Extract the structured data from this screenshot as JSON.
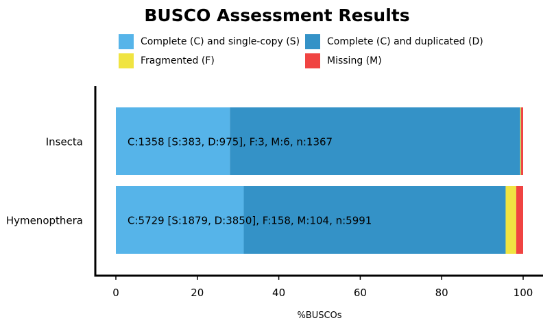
{
  "chart_data": {
    "type": "bar",
    "orientation": "horizontal",
    "stacked": true,
    "title": "BUSCO Assessment Results",
    "xlabel": "%BUSCOs",
    "ylabel": "",
    "xlim": [
      0,
      100
    ],
    "xticks": [
      "0",
      "20",
      "40",
      "60",
      "80",
      "100"
    ],
    "categories": [
      "Insecta",
      "Hymenopthera"
    ],
    "series": [
      {
        "name": "Complete (C) and single-copy (S)",
        "color": "#56b4e9",
        "values": [
          28.0,
          31.4
        ]
      },
      {
        "name": "Complete (C) and duplicated (D)",
        "color": "#3492c7",
        "values": [
          71.3,
          64.3
        ]
      },
      {
        "name": "Fragmented (F)",
        "color": "#f0e442",
        "values": [
          0.2,
          2.6
        ]
      },
      {
        "name": "Missing (M)",
        "color": "#f04442",
        "values": [
          0.5,
          1.7
        ]
      }
    ],
    "bar_labels": [
      "C:1358 [S:383, D:975], F:3, M:6, n:1367",
      "C:5729 [S:1879, D:3850], F:158, M:104, n:5991"
    ],
    "grid": false,
    "legend_position": "top"
  }
}
